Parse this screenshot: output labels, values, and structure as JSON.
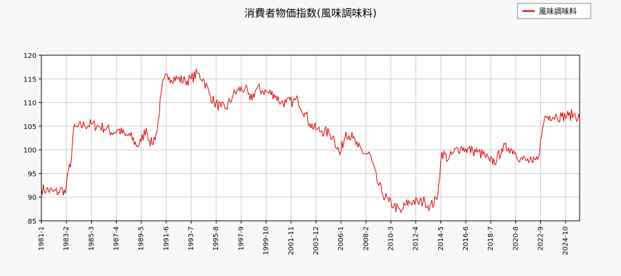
{
  "chart_data": {
    "type": "line",
    "title": "消費者物価指数(風味調味料)",
    "xlabel": "",
    "ylabel": "",
    "x_range": [
      "1981-01",
      "2025-12"
    ],
    "ylim": [
      85,
      120
    ],
    "yticks": [
      85,
      90,
      95,
      100,
      105,
      110,
      115,
      120
    ],
    "xticks": [
      "1981-1",
      "1983-2",
      "1985-3",
      "1987-4",
      "1989-5",
      "1991-6",
      "1993-7",
      "1995-8",
      "1997-9",
      "1999-10",
      "2001-11",
      "2003-12",
      "2006-1",
      "2008-2",
      "2010-3",
      "2012-4",
      "2014-5",
      "2016-6",
      "2018-7",
      "2020-8",
      "2022-9",
      "2024-10"
    ],
    "grid": true,
    "legend_position": "top-right",
    "series": [
      {
        "name": "風味調味料",
        "color": "#dd0000",
        "points": [
          [
            "1981-01",
            91.8
          ],
          [
            "1981-06",
            91.5
          ],
          [
            "1982-01",
            91.2
          ],
          [
            "1982-06",
            91.0
          ],
          [
            "1982-10",
            91.8
          ],
          [
            "1983-01",
            90.8
          ],
          [
            "1983-04",
            95.5
          ],
          [
            "1983-07",
            98.0
          ],
          [
            "1983-09",
            104.2
          ],
          [
            "1984-01",
            104.8
          ],
          [
            "1984-08",
            105.2
          ],
          [
            "1985-03",
            105.4
          ],
          [
            "1985-10",
            105.0
          ],
          [
            "1986-06",
            104.5
          ],
          [
            "1987-01",
            103.6
          ],
          [
            "1987-06",
            104.3
          ],
          [
            "1988-01",
            103.0
          ],
          [
            "1988-06",
            103.0
          ],
          [
            "1989-01",
            100.8
          ],
          [
            "1989-05",
            101.8
          ],
          [
            "1989-10",
            104.6
          ],
          [
            "1990-01",
            102.0
          ],
          [
            "1990-04",
            101.2
          ],
          [
            "1990-09",
            104.2
          ],
          [
            "1991-01",
            112.0
          ],
          [
            "1991-04",
            115.0
          ],
          [
            "1991-09",
            115.4
          ],
          [
            "1992-06",
            115.0
          ],
          [
            "1993-01",
            114.5
          ],
          [
            "1993-07",
            115.0
          ],
          [
            "1994-01",
            116.2
          ],
          [
            "1994-07",
            115.0
          ],
          [
            "1995-01",
            112.0
          ],
          [
            "1995-06",
            110.0
          ],
          [
            "1996-01",
            109.0
          ],
          [
            "1996-06",
            108.8
          ],
          [
            "1997-01",
            111.5
          ],
          [
            "1997-06",
            112.6
          ],
          [
            "1998-01",
            113.0
          ],
          [
            "1998-06",
            110.5
          ],
          [
            "1999-01",
            113.0
          ],
          [
            "1999-06",
            112.5
          ],
          [
            "2000-01",
            112.0
          ],
          [
            "2000-06",
            111.8
          ],
          [
            "2001-01",
            110.0
          ],
          [
            "2001-06",
            110.0
          ],
          [
            "2002-01",
            110.2
          ],
          [
            "2002-06",
            110.5
          ],
          [
            "2003-01",
            107.8
          ],
          [
            "2003-06",
            105.5
          ],
          [
            "2004-01",
            104.2
          ],
          [
            "2004-06",
            104.0
          ],
          [
            "2005-01",
            103.5
          ],
          [
            "2005-06",
            102.5
          ],
          [
            "2005-12",
            99.0
          ],
          [
            "2006-06",
            103.8
          ],
          [
            "2007-01",
            102.5
          ],
          [
            "2007-06",
            100.5
          ],
          [
            "2008-01",
            99.2
          ],
          [
            "2008-06",
            99.0
          ],
          [
            "2009-01",
            93.5
          ],
          [
            "2009-06",
            91.0
          ],
          [
            "2010-01",
            89.0
          ],
          [
            "2010-06",
            88.2
          ],
          [
            "2011-01",
            86.8
          ],
          [
            "2011-06",
            88.5
          ],
          [
            "2012-01",
            89.2
          ],
          [
            "2012-06",
            88.8
          ],
          [
            "2013-01",
            89.2
          ],
          [
            "2013-06",
            88.0
          ],
          [
            "2014-01",
            89.5
          ],
          [
            "2014-03",
            93.0
          ],
          [
            "2014-06",
            99.5
          ],
          [
            "2015-01",
            98.0
          ],
          [
            "2015-06",
            99.5
          ],
          [
            "2016-01",
            100.5
          ],
          [
            "2016-06",
            100.2
          ],
          [
            "2017-01",
            99.8
          ],
          [
            "2017-06",
            99.5
          ],
          [
            "2018-01",
            98.8
          ],
          [
            "2018-06",
            97.5
          ],
          [
            "2019-01",
            97.8
          ],
          [
            "2019-06",
            100.2
          ],
          [
            "2020-01",
            100.5
          ],
          [
            "2020-06",
            99.8
          ],
          [
            "2021-01",
            98.2
          ],
          [
            "2021-06",
            97.8
          ],
          [
            "2022-01",
            97.2
          ],
          [
            "2022-06",
            98.0
          ],
          [
            "2022-10",
            103.0
          ],
          [
            "2023-01",
            107.0
          ],
          [
            "2023-06",
            107.2
          ],
          [
            "2024-01",
            107.2
          ],
          [
            "2024-06",
            107.0
          ],
          [
            "2025-01",
            107.2
          ],
          [
            "2025-06",
            107.5
          ],
          [
            "2025-12",
            106.8
          ]
        ]
      }
    ]
  }
}
